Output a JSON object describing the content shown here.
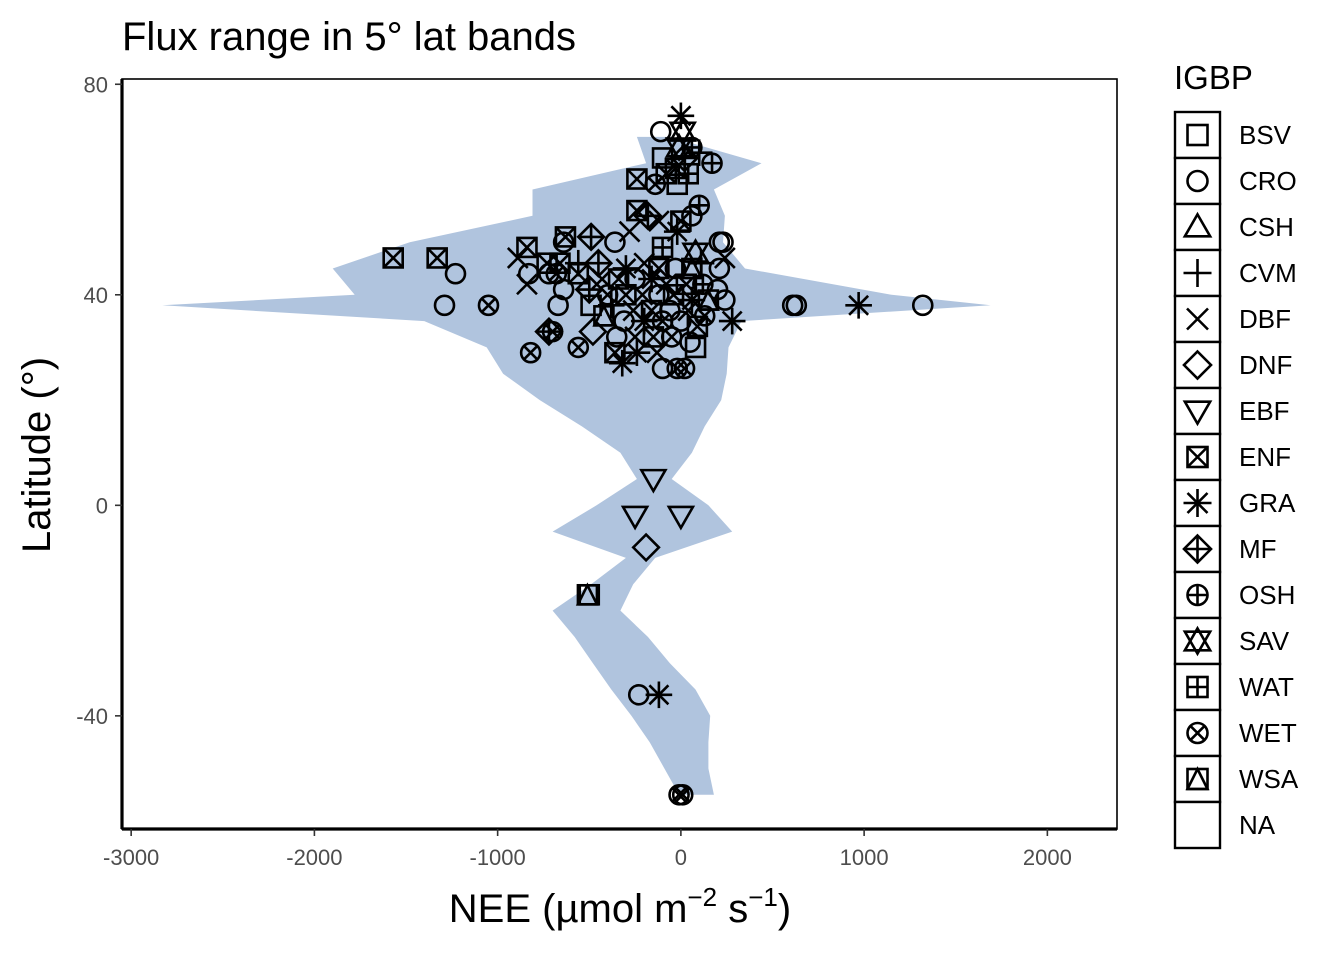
{
  "chart_data": {
    "type": "scatter",
    "title": "Flux range in 5° lat bands",
    "xlabel": "NEE (µmol m^-2 s^-1)",
    "xlabel_parts": {
      "main": "NEE (",
      "mu": "µ",
      "mol": "mol m",
      "exp1": "−2",
      "s": " s",
      "exp2": "−1",
      "close": ")"
    },
    "ylabel": "Latitude (°)",
    "xlim": [
      -3050,
      2380
    ],
    "ylim": [
      -61.5,
      81
    ],
    "xticks": [
      -3000,
      -2000,
      -1000,
      0,
      1000,
      2000
    ],
    "xtick_labels": [
      "-3000",
      "-2000",
      "-1000",
      "0",
      "1000",
      "2000"
    ],
    "yticks": [
      -40,
      0,
      40,
      80
    ],
    "ytick_labels": [
      "-40",
      "0",
      "40",
      "80"
    ],
    "grid": false,
    "band_color": "#b0c4de",
    "band_min": [
      [
        -55,
        -10
      ],
      [
        -50,
        -90
      ],
      [
        -45,
        -170
      ],
      [
        -40,
        -270
      ],
      [
        -35,
        -380
      ],
      [
        -30,
        -480
      ],
      [
        -25,
        -580
      ],
      [
        -20,
        -700
      ],
      [
        -15,
        -490
      ],
      [
        -10,
        -300
      ],
      [
        -5,
        -700
      ],
      [
        0,
        -460
      ],
      [
        5,
        -240
      ],
      [
        10,
        -330
      ],
      [
        15,
        -540
      ],
      [
        20,
        -770
      ],
      [
        25,
        -970
      ],
      [
        30,
        -1060
      ],
      [
        35,
        -1400
      ],
      [
        38,
        -2830
      ],
      [
        40,
        -1780
      ],
      [
        45,
        -1900
      ],
      [
        50,
        -1480
      ],
      [
        55,
        -810
      ],
      [
        60,
        -810
      ],
      [
        65,
        -190
      ],
      [
        70,
        -240
      ]
    ],
    "band_max": [
      [
        -55,
        180
      ],
      [
        -50,
        150
      ],
      [
        -45,
        150
      ],
      [
        -40,
        160
      ],
      [
        -35,
        80
      ],
      [
        -30,
        -60
      ],
      [
        -25,
        -180
      ],
      [
        -20,
        -330
      ],
      [
        -15,
        -260
      ],
      [
        -10,
        -140
      ],
      [
        -5,
        280
      ],
      [
        0,
        150
      ],
      [
        5,
        -50
      ],
      [
        10,
        60
      ],
      [
        15,
        130
      ],
      [
        20,
        220
      ],
      [
        25,
        250
      ],
      [
        30,
        260
      ],
      [
        35,
        330
      ],
      [
        38,
        1690
      ],
      [
        40,
        1150
      ],
      [
        45,
        350
      ],
      [
        50,
        230
      ],
      [
        55,
        240
      ],
      [
        60,
        180
      ],
      [
        65,
        440
      ],
      [
        70,
        -60
      ]
    ],
    "legend": {
      "title": "IGBP",
      "entries": [
        {
          "label": "BSV",
          "shape": "square"
        },
        {
          "label": "CRO",
          "shape": "circle"
        },
        {
          "label": "CSH",
          "shape": "triangle"
        },
        {
          "label": "CVM",
          "shape": "plus"
        },
        {
          "label": "DBF",
          "shape": "cross"
        },
        {
          "label": "DNF",
          "shape": "diamond"
        },
        {
          "label": "EBF",
          "shape": "triangle-down"
        },
        {
          "label": "ENF",
          "shape": "square-cross"
        },
        {
          "label": "GRA",
          "shape": "asterisk"
        },
        {
          "label": "MF",
          "shape": "diamond-plus"
        },
        {
          "label": "OSH",
          "shape": "circle-plus"
        },
        {
          "label": "SAV",
          "shape": "star-of-david"
        },
        {
          "label": "WAT",
          "shape": "square-plus"
        },
        {
          "label": "WET",
          "shape": "circle-cross"
        },
        {
          "label": "WSA",
          "shape": "square-triangle"
        },
        {
          "label": "NA",
          "shape": "none"
        }
      ]
    },
    "points": [
      {
        "x": 0,
        "y": 74,
        "igbp": "GRA"
      },
      {
        "x": 10,
        "y": 71,
        "igbp": "SAV"
      },
      {
        "x": -110,
        "y": 71,
        "igbp": "CRO"
      },
      {
        "x": -10,
        "y": 68,
        "igbp": "SAV"
      },
      {
        "x": 60,
        "y": 68,
        "igbp": "OSH"
      },
      {
        "x": 100,
        "y": 67,
        "igbp": "CVM"
      },
      {
        "x": -100,
        "y": 66,
        "igbp": "BSV"
      },
      {
        "x": 20,
        "y": 66,
        "igbp": "MF"
      },
      {
        "x": 170,
        "y": 65,
        "igbp": "OSH"
      },
      {
        "x": -30,
        "y": 64,
        "igbp": "ENF"
      },
      {
        "x": 40,
        "y": 63,
        "igbp": "WAT"
      },
      {
        "x": -80,
        "y": 63,
        "igbp": "ENF"
      },
      {
        "x": -240,
        "y": 62,
        "igbp": "ENF"
      },
      {
        "x": -140,
        "y": 61,
        "igbp": "WET"
      },
      {
        "x": -20,
        "y": 61,
        "igbp": "BSV"
      },
      {
        "x": 100,
        "y": 57,
        "igbp": "OSH"
      },
      {
        "x": -240,
        "y": 56,
        "igbp": "ENF"
      },
      {
        "x": -180,
        "y": 55,
        "igbp": "MF"
      },
      {
        "x": -120,
        "y": 54,
        "igbp": "DBF"
      },
      {
        "x": 0,
        "y": 54,
        "igbp": "ENF"
      },
      {
        "x": 60,
        "y": 55,
        "igbp": "CRO"
      },
      {
        "x": -280,
        "y": 52,
        "igbp": "DBF"
      },
      {
        "x": -20,
        "y": 52,
        "igbp": "GRA"
      },
      {
        "x": 210,
        "y": 50,
        "igbp": "CRO"
      },
      {
        "x": 230,
        "y": 50,
        "igbp": "CRO"
      },
      {
        "x": -630,
        "y": 51,
        "igbp": "ENF"
      },
      {
        "x": -490,
        "y": 51,
        "igbp": "MF"
      },
      {
        "x": -840,
        "y": 49,
        "igbp": "ENF"
      },
      {
        "x": -640,
        "y": 50,
        "igbp": "CRO"
      },
      {
        "x": -360,
        "y": 50,
        "igbp": "CRO"
      },
      {
        "x": -100,
        "y": 49,
        "igbp": "WAT"
      },
      {
        "x": 80,
        "y": 48,
        "igbp": "SAV"
      },
      {
        "x": 240,
        "y": 47,
        "igbp": "DBF"
      },
      {
        "x": -1570,
        "y": 47,
        "igbp": "ENF"
      },
      {
        "x": -1330,
        "y": 47,
        "igbp": "ENF"
      },
      {
        "x": -890,
        "y": 47,
        "igbp": "DBF"
      },
      {
        "x": -730,
        "y": 46,
        "igbp": "ENF"
      },
      {
        "x": -660,
        "y": 46,
        "igbp": "ENF"
      },
      {
        "x": -560,
        "y": 46,
        "igbp": "CVM"
      },
      {
        "x": -450,
        "y": 46,
        "igbp": "MF"
      },
      {
        "x": -300,
        "y": 45,
        "igbp": "GRA"
      },
      {
        "x": -200,
        "y": 46,
        "igbp": "DBF"
      },
      {
        "x": -120,
        "y": 45,
        "igbp": "ENF"
      },
      {
        "x": -30,
        "y": 45,
        "igbp": "CRO"
      },
      {
        "x": 60,
        "y": 45,
        "igbp": "WSA"
      },
      {
        "x": 110,
        "y": 46,
        "igbp": "CVM"
      },
      {
        "x": 210,
        "y": 45,
        "igbp": "CRO"
      },
      {
        "x": -1230,
        "y": 44,
        "igbp": "CRO"
      },
      {
        "x": -830,
        "y": 44,
        "igbp": "CRO"
      },
      {
        "x": -720,
        "y": 44,
        "igbp": "CRO"
      },
      {
        "x": -680,
        "y": 44,
        "igbp": "WET"
      },
      {
        "x": -560,
        "y": 44,
        "igbp": "ENF"
      },
      {
        "x": -430,
        "y": 43,
        "igbp": "DBF"
      },
      {
        "x": -340,
        "y": 43,
        "igbp": "ENF"
      },
      {
        "x": -250,
        "y": 43,
        "igbp": "CRO"
      },
      {
        "x": -160,
        "y": 43,
        "igbp": "GRA"
      },
      {
        "x": -80,
        "y": 42,
        "igbp": "DBF"
      },
      {
        "x": 30,
        "y": 42,
        "igbp": "ENF"
      },
      {
        "x": 120,
        "y": 42,
        "igbp": "OSH"
      },
      {
        "x": 200,
        "y": 41,
        "igbp": "CRO"
      },
      {
        "x": -840,
        "y": 42,
        "igbp": "DBF"
      },
      {
        "x": -640,
        "y": 41,
        "igbp": "CRO"
      },
      {
        "x": -500,
        "y": 41,
        "igbp": "MF"
      },
      {
        "x": -400,
        "y": 40,
        "igbp": "WET"
      },
      {
        "x": -300,
        "y": 40,
        "igbp": "ENF"
      },
      {
        "x": -210,
        "y": 40,
        "igbp": "DBF"
      },
      {
        "x": -120,
        "y": 40,
        "igbp": "CRO"
      },
      {
        "x": -40,
        "y": 40,
        "igbp": "ENF"
      },
      {
        "x": 60,
        "y": 39,
        "igbp": "GRA"
      },
      {
        "x": 150,
        "y": 39,
        "igbp": "WSA"
      },
      {
        "x": 240,
        "y": 39,
        "igbp": "CRO"
      },
      {
        "x": -1290,
        "y": 38,
        "igbp": "CRO"
      },
      {
        "x": -1050,
        "y": 38,
        "igbp": "WET"
      },
      {
        "x": -670,
        "y": 38,
        "igbp": "CRO"
      },
      {
        "x": -490,
        "y": 38,
        "igbp": "BSV"
      },
      {
        "x": -380,
        "y": 38,
        "igbp": "CVM"
      },
      {
        "x": -260,
        "y": 37,
        "igbp": "DBF"
      },
      {
        "x": -160,
        "y": 37,
        "igbp": "ENF"
      },
      {
        "x": -60,
        "y": 37,
        "igbp": "CRO"
      },
      {
        "x": 40,
        "y": 37,
        "igbp": "DBF"
      },
      {
        "x": 130,
        "y": 36,
        "igbp": "WET"
      },
      {
        "x": 610,
        "y": 38,
        "igbp": "CRO"
      },
      {
        "x": 630,
        "y": 38,
        "igbp": "CRO"
      },
      {
        "x": 970,
        "y": 38,
        "igbp": "GRA"
      },
      {
        "x": 1320,
        "y": 38,
        "igbp": "CRO"
      },
      {
        "x": -420,
        "y": 36,
        "igbp": "WSA"
      },
      {
        "x": -310,
        "y": 35,
        "igbp": "CRO"
      },
      {
        "x": -200,
        "y": 35,
        "igbp": "GRA"
      },
      {
        "x": -100,
        "y": 35,
        "igbp": "WET"
      },
      {
        "x": 0,
        "y": 35,
        "igbp": "CRO"
      },
      {
        "x": 90,
        "y": 34,
        "igbp": "ENF"
      },
      {
        "x": 280,
        "y": 35,
        "igbp": "GRA"
      },
      {
        "x": -720,
        "y": 33,
        "igbp": "MF"
      },
      {
        "x": -700,
        "y": 33,
        "igbp": "WET"
      },
      {
        "x": -480,
        "y": 33,
        "igbp": "DNF"
      },
      {
        "x": -350,
        "y": 32,
        "igbp": "CRO"
      },
      {
        "x": -250,
        "y": 32,
        "igbp": "DBF"
      },
      {
        "x": -150,
        "y": 32,
        "igbp": "ENF"
      },
      {
        "x": -50,
        "y": 32,
        "igbp": "WET"
      },
      {
        "x": 50,
        "y": 31,
        "igbp": "CRO"
      },
      {
        "x": -820,
        "y": 29,
        "igbp": "WET"
      },
      {
        "x": -560,
        "y": 30,
        "igbp": "WET"
      },
      {
        "x": -360,
        "y": 29,
        "igbp": "ENF"
      },
      {
        "x": -240,
        "y": 29,
        "igbp": "GRA"
      },
      {
        "x": -130,
        "y": 29,
        "igbp": "DBF"
      },
      {
        "x": 80,
        "y": 30,
        "igbp": "BSV"
      },
      {
        "x": -320,
        "y": 27,
        "igbp": "GRA"
      },
      {
        "x": -100,
        "y": 26,
        "igbp": "CRO"
      },
      {
        "x": -20,
        "y": 26,
        "igbp": "WET"
      },
      {
        "x": 20,
        "y": 26,
        "igbp": "WET"
      },
      {
        "x": -150,
        "y": 5,
        "igbp": "EBF"
      },
      {
        "x": -250,
        "y": -2,
        "igbp": "EBF"
      },
      {
        "x": 0,
        "y": -2,
        "igbp": "EBF"
      },
      {
        "x": -190,
        "y": -8,
        "igbp": "DNF"
      },
      {
        "x": -510,
        "y": -17,
        "igbp": "WSA"
      },
      {
        "x": -500,
        "y": -17,
        "igbp": "BSV"
      },
      {
        "x": -230,
        "y": -36,
        "igbp": "CRO"
      },
      {
        "x": -120,
        "y": -36,
        "igbp": "GRA"
      },
      {
        "x": -10,
        "y": -55,
        "igbp": "WET"
      },
      {
        "x": 10,
        "y": -55,
        "igbp": "WET"
      }
    ]
  }
}
